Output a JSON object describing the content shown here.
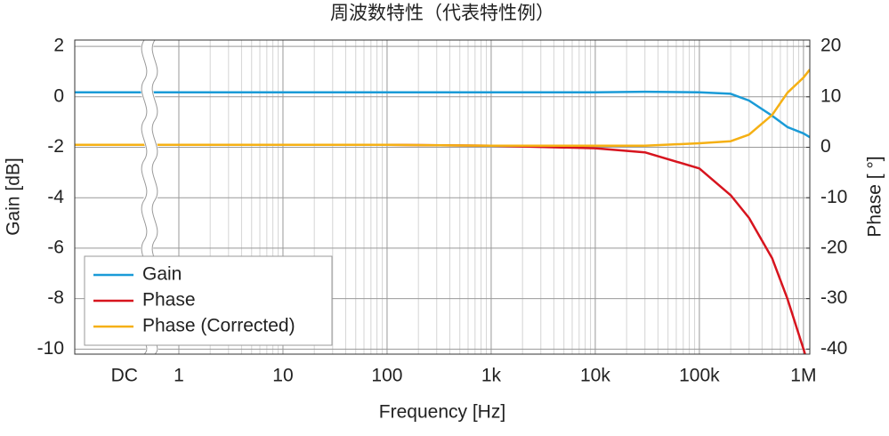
{
  "chart_data": {
    "type": "line",
    "title": "周波数特性（代表特性例）",
    "xlabel": "Frequency [Hz]",
    "ylabel": "Gain [dB]",
    "y2label": "Phase [ °]",
    "xscale": "log",
    "x": [
      0.1,
      1,
      10,
      100,
      1000,
      10000,
      30000,
      100000,
      200000,
      300000,
      500000,
      700000,
      1000000,
      1150000
    ],
    "series": [
      {
        "name": "Gain",
        "color": "#1a9bd7",
        "axis": "y",
        "values": [
          0.18,
          0.18,
          0.18,
          0.18,
          0.18,
          0.18,
          0.2,
          0.18,
          0.12,
          -0.15,
          -0.75,
          -1.2,
          -1.45,
          -1.6
        ]
      },
      {
        "name": "Phase",
        "color": "#d7141e",
        "axis": "y2",
        "values": [
          0.5,
          0.5,
          0.5,
          0.5,
          0.3,
          -0.2,
          -1,
          -4.2,
          -9.5,
          -14,
          -22,
          -30,
          -40,
          -44
        ]
      },
      {
        "name": "Phase (Corrected)",
        "color": "#f5b014",
        "axis": "y2",
        "values": [
          0.5,
          0.5,
          0.5,
          0.5,
          0.3,
          0.3,
          0.3,
          0.8,
          1.2,
          2.5,
          6.4,
          10.8,
          13.8,
          15.4
        ]
      }
    ],
    "xlim": [
      0.1,
      1150000
    ],
    "xticks": [
      {
        "value": 0.3,
        "label": "DC"
      },
      1,
      10,
      100,
      {
        "value": 1000,
        "label": "1k"
      },
      {
        "value": 10000,
        "label": "10k"
      },
      {
        "value": 100000,
        "label": "100k"
      },
      {
        "value": 1000000,
        "label": "1M"
      }
    ],
    "ylim": [
      -10.2,
      2.25
    ],
    "yticks": [
      -10,
      -8,
      -6,
      -4,
      -2,
      0,
      2
    ],
    "y2lim": [
      -41,
      21.25
    ],
    "y2ticks": [
      -40,
      -30,
      -20,
      -10,
      0,
      10,
      20
    ],
    "grid": true,
    "legend": "lower left"
  }
}
